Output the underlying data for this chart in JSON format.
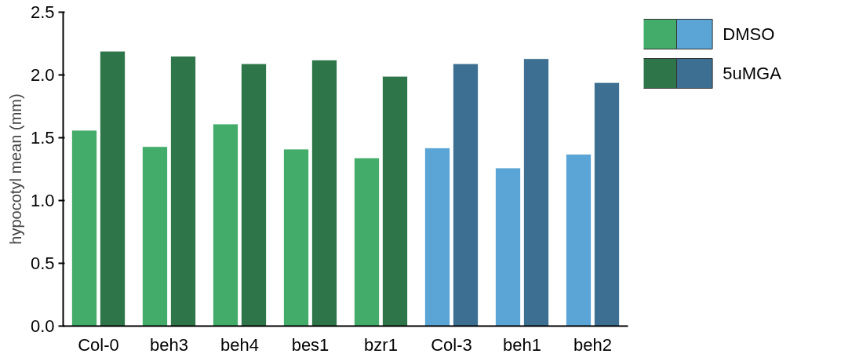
{
  "chart_data": {
    "type": "bar",
    "ylabel": "hypocotyl mean (mm)",
    "categories": [
      "Col-0",
      "beh3",
      "beh4",
      "bes1",
      "bzr1",
      "Col-3",
      "beh1",
      "beh2"
    ],
    "series": [
      {
        "name": "DMSO",
        "colors": [
          "#44ac6a",
          "#44ac6a",
          "#44ac6a",
          "#44ac6a",
          "#44ac6a",
          "#5ba5d6",
          "#5ba5d6",
          "#5ba5d6"
        ],
        "values": [
          1.56,
          1.43,
          1.61,
          1.41,
          1.34,
          1.42,
          1.26,
          1.37
        ]
      },
      {
        "name": "5uMGA",
        "colors": [
          "#2e764a",
          "#2e764a",
          "#2e764a",
          "#2e764a",
          "#2e764a",
          "#3c6f91",
          "#3c6f91",
          "#3c6f91"
        ],
        "values": [
          2.19,
          2.15,
          2.09,
          2.12,
          1.99,
          2.09,
          2.13,
          1.94
        ]
      }
    ],
    "ylim": [
      0,
      2.5
    ],
    "yticks": [
      {
        "value": 0,
        "label": "0.0"
      },
      {
        "value": 0.5,
        "label": "0.5"
      },
      {
        "value": 1,
        "label": "1.0"
      },
      {
        "value": 1.5,
        "label": "1.5"
      },
      {
        "value": 2,
        "label": "2.0"
      },
      {
        "value": 2.5,
        "label": "2.5"
      }
    ],
    "grid": false,
    "legend": "top right"
  }
}
